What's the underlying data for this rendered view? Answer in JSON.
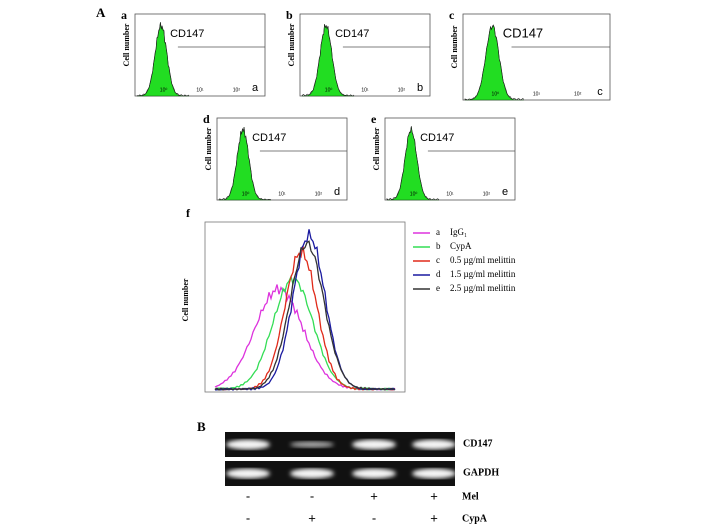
{
  "panel_A": {
    "label": "A",
    "small_panels": [
      {
        "letter": "a",
        "y_label": "Cell number",
        "marker": "CD147",
        "corner": "a",
        "x_ticks": [
          "10⁰",
          "10¹",
          "10²"
        ]
      },
      {
        "letter": "b",
        "y_label": "Cell number",
        "marker": "CD147",
        "corner": "b",
        "x_ticks": [
          "10⁰",
          "10¹",
          "10²"
        ]
      },
      {
        "letter": "c",
        "y_label": "Cell number",
        "marker": "CD147",
        "corner": "c",
        "x_ticks": [
          "10⁰",
          "10¹",
          "10²"
        ]
      },
      {
        "letter": "d",
        "y_label": "Cell number",
        "marker": "CD147",
        "corner": "d",
        "x_ticks": [
          "10⁰",
          "10¹",
          "10²"
        ]
      },
      {
        "letter": "e",
        "y_label": "Cell number",
        "marker": "CD147",
        "corner": "e",
        "x_ticks": [
          "10⁰",
          "10¹",
          "10²"
        ]
      }
    ],
    "overlay": {
      "letter": "f",
      "y_label": "Cell number",
      "legend": [
        {
          "key": "a",
          "text": "IgG₁"
        },
        {
          "key": "b",
          "text": "CypA"
        },
        {
          "key": "c",
          "text": "0.5 µg/ml melittin"
        },
        {
          "key": "d",
          "text": "1.5 µg/ml melittin"
        },
        {
          "key": "e",
          "text": "2.5 µg/ml melittin"
        }
      ]
    }
  },
  "panel_B": {
    "label": "B",
    "bands": [
      "CD147",
      "GAPDH"
    ],
    "conditions": [
      {
        "name": "Mel",
        "signs": [
          "-",
          "-",
          "+",
          "+"
        ]
      },
      {
        "name": "CypA",
        "signs": [
          "-",
          "+",
          "-",
          "+"
        ]
      }
    ]
  }
}
